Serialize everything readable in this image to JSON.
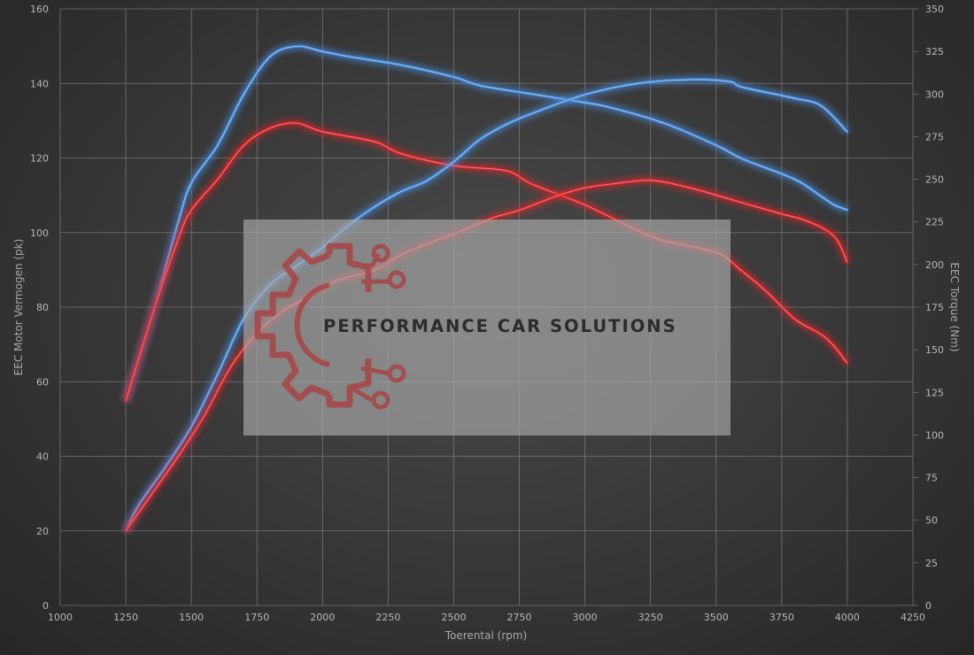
{
  "colors": {
    "stock": "#4a8fe0",
    "tuned": "#e0262a",
    "background": "#333333",
    "grid": "#8a8a8a",
    "watermark_box": "#a6a6a6",
    "watermark_logo": "#a84545"
  },
  "watermark": {
    "text": "PERFORMANCE CAR SOLUTIONS",
    "logo": "gear-circuit-icon"
  },
  "chart_data": {
    "type": "line",
    "title": "",
    "xlabel": "Toerental (rpm)",
    "ylabel_left": "EEC Motor Vermogen (pk)",
    "ylabel_right": "EEC Torque (Nm)",
    "xlim": [
      1000,
      4250
    ],
    "ylim_left": [
      0,
      160
    ],
    "ylim_right": [
      0,
      350
    ],
    "grid": true,
    "legend": "none",
    "x_ticks": [
      "1000",
      "1250",
      "1500",
      "1750",
      "2000",
      "2250",
      "2500",
      "2750",
      "3000",
      "3250",
      "3500",
      "3750",
      "4000",
      "4250"
    ],
    "y_left_ticks": [
      "0",
      "20",
      "40",
      "60",
      "80",
      "100",
      "120",
      "140",
      "160"
    ],
    "y_right_ticks": [
      "0",
      "25",
      "50",
      "75",
      "100",
      "125",
      "150",
      "175",
      "200",
      "225",
      "250",
      "275",
      "300",
      "325",
      "350"
    ],
    "series": [
      {
        "axis": "right",
        "color_key": "stock",
        "points": [
          [
            1250,
            120
          ],
          [
            1350,
            170
          ],
          [
            1450,
            225
          ],
          [
            1500,
            248
          ],
          [
            1600,
            270
          ],
          [
            1700,
            300
          ],
          [
            1800,
            322
          ],
          [
            1900,
            328
          ],
          [
            2000,
            325
          ],
          [
            2100,
            322
          ],
          [
            2300,
            317
          ],
          [
            2500,
            310
          ],
          [
            2600,
            305
          ],
          [
            2800,
            300
          ],
          [
            3000,
            295
          ],
          [
            3100,
            292
          ],
          [
            3300,
            283
          ],
          [
            3500,
            270
          ],
          [
            3600,
            262
          ],
          [
            3800,
            250
          ],
          [
            3900,
            240
          ],
          [
            3950,
            235
          ],
          [
            4000,
            232
          ]
        ]
      },
      {
        "axis": "right",
        "color_key": "tuned",
        "points": [
          [
            1250,
            120
          ],
          [
            1350,
            170
          ],
          [
            1450,
            215
          ],
          [
            1500,
            232
          ],
          [
            1600,
            250
          ],
          [
            1700,
            270
          ],
          [
            1800,
            280
          ],
          [
            1900,
            283
          ],
          [
            2000,
            278
          ],
          [
            2200,
            272
          ],
          [
            2300,
            265
          ],
          [
            2500,
            258
          ],
          [
            2700,
            255
          ],
          [
            2800,
            247
          ],
          [
            3000,
            235
          ],
          [
            3200,
            220
          ],
          [
            3300,
            214
          ],
          [
            3500,
            207
          ],
          [
            3600,
            196
          ],
          [
            3700,
            183
          ],
          [
            3800,
            168
          ],
          [
            3900,
            159
          ],
          [
            3950,
            152
          ],
          [
            4000,
            142
          ]
        ]
      },
      {
        "axis": "left",
        "color_key": "stock",
        "points": [
          [
            1250,
            20
          ],
          [
            1300,
            27
          ],
          [
            1400,
            37
          ],
          [
            1500,
            48
          ],
          [
            1600,
            62
          ],
          [
            1700,
            77
          ],
          [
            1800,
            86
          ],
          [
            1900,
            91
          ],
          [
            2000,
            96
          ],
          [
            2100,
            102
          ],
          [
            2200,
            107
          ],
          [
            2300,
            111
          ],
          [
            2400,
            114
          ],
          [
            2500,
            119
          ],
          [
            2600,
            125
          ],
          [
            2700,
            129
          ],
          [
            2800,
            132
          ],
          [
            3000,
            137
          ],
          [
            3200,
            140
          ],
          [
            3400,
            141
          ],
          [
            3550,
            140.5
          ],
          [
            3600,
            139
          ],
          [
            3800,
            136
          ],
          [
            3900,
            134
          ],
          [
            4000,
            127
          ]
        ]
      },
      {
        "axis": "left",
        "color_key": "tuned",
        "points": [
          [
            1250,
            20
          ],
          [
            1350,
            30
          ],
          [
            1450,
            40
          ],
          [
            1550,
            51
          ],
          [
            1650,
            64
          ],
          [
            1750,
            73
          ],
          [
            1850,
            79
          ],
          [
            1950,
            83
          ],
          [
            2050,
            87
          ],
          [
            2200,
            90
          ],
          [
            2300,
            94
          ],
          [
            2400,
            97
          ],
          [
            2550,
            101
          ],
          [
            2650,
            104
          ],
          [
            2750,
            106
          ],
          [
            2900,
            110
          ],
          [
            3000,
            112
          ],
          [
            3100,
            113
          ],
          [
            3250,
            114
          ],
          [
            3400,
            112
          ],
          [
            3550,
            109
          ],
          [
            3650,
            107
          ],
          [
            3750,
            105
          ],
          [
            3850,
            103
          ],
          [
            3950,
            99
          ],
          [
            4000,
            92
          ]
        ]
      }
    ]
  }
}
